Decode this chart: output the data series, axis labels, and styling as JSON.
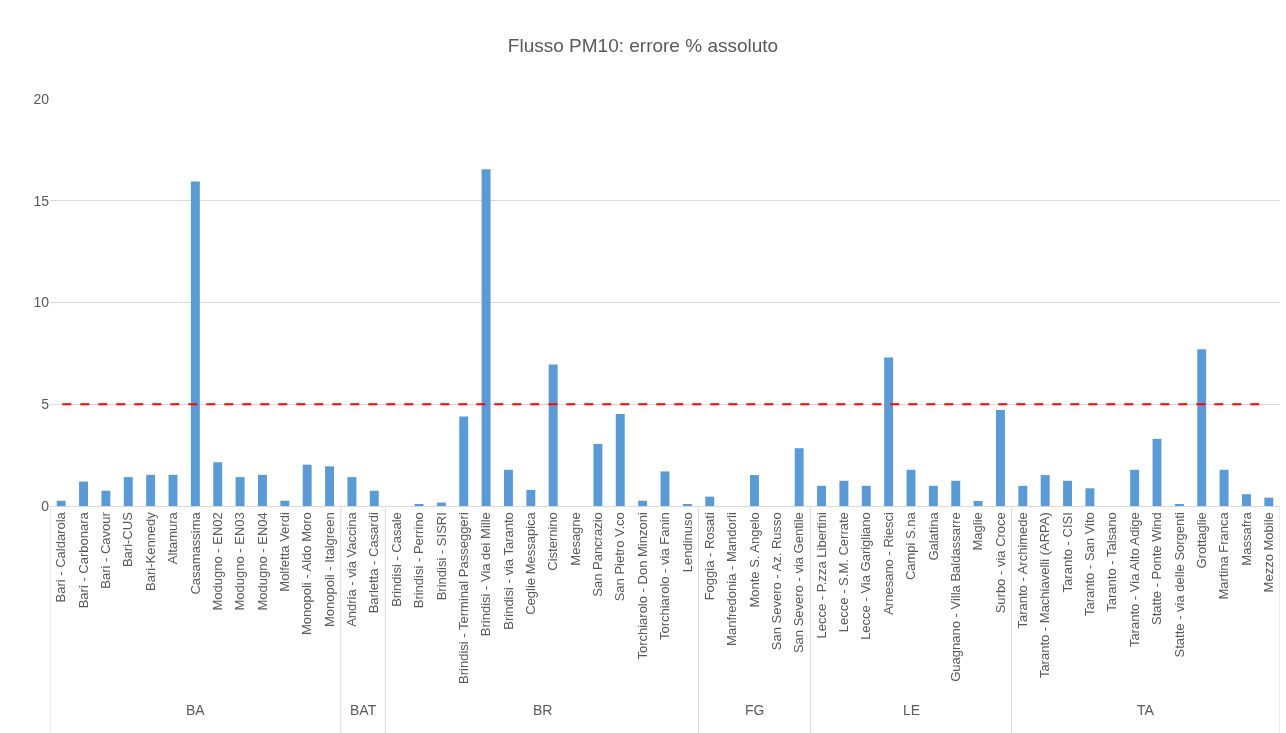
{
  "chart_data": {
    "type": "bar",
    "title": "Flusso PM10: errore % assoluto",
    "categories": [
      "Bari - Caldarola",
      "Bari - Carbonara",
      "Bari - Cavour",
      "Bari-CUS",
      "Bari-Kennedy",
      "Altamura",
      "Casamassima",
      "Modugno - EN02",
      "Modugno - EN03",
      "Modugno - EN04",
      "Molfetta Verdi",
      "Monopoli - Aldo Moro",
      "Monopoli - Italgreen",
      "Andria - via Vaccina",
      "Barletta - Casardi",
      "Brindisi - Casale",
      "Brindisi - Perrino",
      "Brindisi - SISRI",
      "Brindisi - Terminal Passeggeri",
      "Brindisi - Via dei Mille",
      "Brindisi - via Taranto",
      "Ceglie Messapica",
      "Cisternino",
      "Mesagne",
      "San Pancrazio",
      "San Pietro V.co",
      "Torchiarolo - Don Minzoni",
      "Torchiarolo - via Fanin",
      "Lendinuso",
      "Foggia - Rosati",
      "Manfredonia - Mandorli",
      "Monte S. Angelo",
      "San Severo - Az. Russo",
      "San Severo - via Gentile",
      "Lecce - P.zza Libertini",
      "Lecce - S.M. Cerrate",
      "Lecce - Via Garigliano",
      "Arnesano - Riesci",
      "Campi S.na",
      "Galatina",
      "Guagnano - Villa Baldassarre",
      "Maglie",
      "Surbo - via Croce",
      "Taranto - Archimede",
      "Taranto - Machiavelli (ARPA)",
      "Taranto - CISI",
      "Taranto - San Vito",
      "Taranto - Talsano",
      "Taranto - Via Alto Adige",
      "Statte - Ponte Wind",
      "Statte - via delle Sorgenti",
      "Grottaglie",
      "Martina Franca",
      "Massafra",
      "Mezzo Mobile"
    ],
    "series": [
      {
        "color": "#5b9bd5",
        "values": [
          0.26,
          1.2,
          0.75,
          1.42,
          1.53,
          1.53,
          15.95,
          2.15,
          1.42,
          1.53,
          0.26,
          2.03,
          1.95,
          null,
          null,
          null,
          null,
          null,
          null,
          null,
          null,
          null,
          null,
          null,
          null,
          null,
          null,
          null,
          null,
          null,
          null,
          null,
          null,
          null,
          null,
          null,
          null,
          null,
          null,
          null,
          null,
          null,
          null,
          null,
          null,
          null,
          null,
          null,
          null,
          null,
          null,
          null,
          null,
          null,
          null
        ]
      },
      {
        "color": "#5b9bd5",
        "values": [
          null,
          null,
          null,
          null,
          null,
          null,
          null,
          null,
          null,
          null,
          null,
          null,
          null,
          1.42,
          0.75,
          null,
          null,
          null,
          null,
          null,
          null,
          null,
          null,
          null,
          null,
          null,
          null,
          null,
          null,
          null,
          null,
          null,
          null,
          null,
          null,
          null,
          null,
          null,
          null,
          null,
          null,
          null,
          null,
          null,
          null,
          null,
          null,
          null,
          null,
          null,
          null,
          null,
          null,
          null,
          null
        ]
      },
      {
        "color": "#5b9bd5",
        "values": [
          null,
          null,
          null,
          null,
          null,
          null,
          null,
          null,
          null,
          null,
          null,
          null,
          null,
          null,
          null,
          0,
          0.05,
          0.17,
          4.4,
          16.55,
          1.78,
          0.79,
          6.95,
          0,
          3.05,
          4.52,
          0.26,
          1.7,
          0.1,
          null,
          null,
          null,
          null,
          null,
          null,
          null,
          null,
          null,
          null,
          null,
          null,
          null,
          null,
          null,
          null,
          null,
          null,
          null,
          null,
          null,
          null,
          null,
          null,
          null,
          null
        ]
      },
      {
        "color": "#5b9bd5",
        "values": [
          null,
          null,
          null,
          null,
          null,
          null,
          null,
          null,
          null,
          null,
          null,
          null,
          null,
          null,
          null,
          null,
          null,
          null,
          null,
          null,
          null,
          null,
          null,
          null,
          null,
          null,
          null,
          null,
          null,
          0.46,
          0,
          1.52,
          0,
          2.84,
          null,
          null,
          null,
          null,
          null,
          null,
          null,
          null,
          null,
          null,
          null,
          null,
          null,
          null,
          null,
          null,
          null,
          null,
          null,
          null,
          null
        ]
      },
      {
        "color": "#5b9bd5",
        "values": [
          null,
          null,
          null,
          null,
          null,
          null,
          null,
          null,
          null,
          null,
          null,
          null,
          null,
          null,
          null,
          null,
          null,
          null,
          null,
          null,
          null,
          null,
          null,
          null,
          null,
          null,
          null,
          null,
          null,
          null,
          null,
          null,
          null,
          null,
          0.99,
          1.24,
          0.99,
          7.3,
          1.78,
          0.99,
          1.24,
          0.25,
          4.72,
          null,
          null,
          null,
          null,
          null,
          null,
          null,
          null,
          null,
          null,
          null,
          null
        ]
      },
      {
        "color": "#5b9bd5",
        "values": [
          null,
          null,
          null,
          null,
          null,
          null,
          null,
          null,
          null,
          null,
          null,
          null,
          null,
          null,
          null,
          null,
          null,
          null,
          null,
          null,
          null,
          null,
          null,
          null,
          null,
          null,
          null,
          null,
          null,
          null,
          null,
          null,
          null,
          null,
          null,
          null,
          null,
          null,
          null,
          null,
          null,
          null,
          null,
          0.99,
          1.52,
          1.24,
          0.87,
          0,
          1.78,
          3.3,
          0.05,
          7.7,
          1.78,
          0.58,
          0.41
        ]
      }
    ],
    "annotations": [
      "BA",
      "BAT",
      "BR",
      "FG",
      "LE",
      "TA"
    ],
    "ylim": [
      0,
      20
    ],
    "yticks": [
      0,
      5,
      10,
      15,
      20
    ],
    "grid": "y",
    "ref_lines": [
      {
        "axis": "y",
        "value": 5,
        "color": "#ff0000",
        "line_style": "dashed"
      }
    ]
  }
}
